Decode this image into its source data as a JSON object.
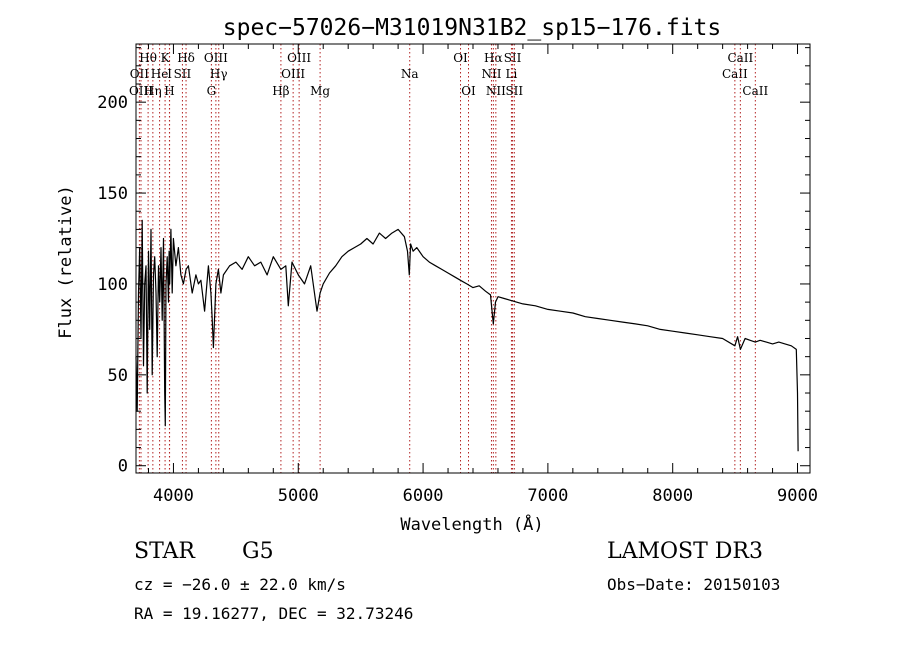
{
  "chart_data": {
    "type": "line",
    "title": "spec−57026−M31019N31B2_sp15−176.fits",
    "xlabel": "Wavelength (Å)",
    "ylabel": "Flux (relative)",
    "xlim": [
      3700,
      9100
    ],
    "ylim": [
      -4,
      232
    ],
    "xticks": [
      4000,
      5000,
      6000,
      7000,
      8000,
      9000
    ],
    "yticks": [
      0,
      50,
      100,
      150,
      200
    ],
    "minor_x_step": 200,
    "minor_y_step": 10,
    "series": [
      {
        "name": "spectrum",
        "color": "#000000",
        "x": [
          3700,
          3710,
          3720,
          3730,
          3740,
          3750,
          3760,
          3770,
          3780,
          3790,
          3800,
          3810,
          3820,
          3830,
          3840,
          3850,
          3860,
          3870,
          3880,
          3890,
          3900,
          3910,
          3920,
          3930,
          3935,
          3940,
          3950,
          3960,
          3965,
          3970,
          3980,
          3990,
          4000,
          4020,
          4040,
          4060,
          4080,
          4101,
          4120,
          4150,
          4180,
          4200,
          4220,
          4250,
          4280,
          4300,
          4310,
          4320,
          4340,
          4360,
          4380,
          4400,
          4450,
          4500,
          4550,
          4600,
          4650,
          4700,
          4750,
          4800,
          4861,
          4900,
          4920,
          4950,
          5000,
          5050,
          5100,
          5150,
          5175,
          5200,
          5250,
          5300,
          5350,
          5400,
          5450,
          5500,
          5550,
          5600,
          5650,
          5700,
          5750,
          5800,
          5850,
          5875,
          5890,
          5900,
          5920,
          5950,
          6000,
          6050,
          6100,
          6150,
          6200,
          6250,
          6300,
          6350,
          6400,
          6450,
          6500,
          6540,
          6563,
          6580,
          6600,
          6650,
          6700,
          6800,
          6900,
          7000,
          7100,
          7200,
          7300,
          7400,
          7500,
          7600,
          7700,
          7800,
          7900,
          8000,
          8100,
          8200,
          8300,
          8400,
          8498,
          8520,
          8542,
          8580,
          8620,
          8662,
          8700,
          8750,
          8800,
          8850,
          8900,
          8950,
          8990,
          9000,
          9005
        ],
        "y": [
          60,
          30,
          95,
          120,
          70,
          135,
          55,
          100,
          110,
          40,
          118,
          75,
          130,
          50,
          105,
          115,
          95,
          60,
          110,
          90,
          120,
          80,
          125,
          40,
          22,
          100,
          115,
          90,
          118,
          100,
          130,
          95,
          125,
          110,
          120,
          105,
          100,
          108,
          110,
          95,
          105,
          100,
          102,
          85,
          110,
          95,
          82,
          65,
          100,
          108,
          95,
          105,
          110,
          112,
          108,
          115,
          110,
          112,
          105,
          115,
          108,
          110,
          88,
          112,
          105,
          100,
          110,
          85,
          95,
          100,
          106,
          110,
          115,
          118,
          120,
          122,
          125,
          122,
          128,
          125,
          128,
          130,
          126,
          118,
          105,
          122,
          118,
          120,
          115,
          112,
          110,
          108,
          106,
          104,
          102,
          100,
          98,
          99,
          96,
          94,
          78,
          90,
          93,
          92,
          91,
          89,
          88,
          86,
          85,
          84,
          82,
          81,
          80,
          79,
          78,
          77,
          75,
          74,
          73,
          72,
          71,
          70,
          66,
          71,
          64,
          70,
          69,
          68,
          69,
          68,
          67,
          68,
          67,
          66,
          64,
          40,
          8
        ]
      }
    ],
    "line_markers": [
      {
        "name": "OII",
        "x": 3727,
        "row": 1
      },
      {
        "name": "OIII",
        "x": 3740,
        "row": 2
      },
      {
        "name": "Hθ",
        "x": 3797,
        "row": 0
      },
      {
        "name": "Hη",
        "x": 3835,
        "row": 2
      },
      {
        "name": "He",
        "x": 3889,
        "row": 1
      },
      {
        "name": "K",
        "x": 3933,
        "row": 0
      },
      {
        "name": "H",
        "x": 3968,
        "row": 2
      },
      {
        "name": "I",
        "x": 3969,
        "row": 1
      },
      {
        "name": "SII",
        "x": 4072,
        "row": 1
      },
      {
        "name": "Hδ",
        "x": 4101,
        "row": 0
      },
      {
        "name": "G",
        "x": 4304,
        "row": 2
      },
      {
        "name": "OIII",
        "x": 4340,
        "row": 0
      },
      {
        "name": "Hγ",
        "x": 4363,
        "row": 1
      },
      {
        "name": "Hβ",
        "x": 4861,
        "row": 2
      },
      {
        "name": "OIII",
        "x": 4959,
        "row": 1
      },
      {
        "name": "OIII",
        "x": 5007,
        "row": 0
      },
      {
        "name": "Mg",
        "x": 5175,
        "row": 2
      },
      {
        "name": "Na",
        "x": 5893,
        "row": 1
      },
      {
        "name": "OI",
        "x": 6300,
        "row": 0
      },
      {
        "name": "OI",
        "x": 6364,
        "row": 2
      },
      {
        "name": "NII",
        "x": 6548,
        "row": 1
      },
      {
        "name": "Hα",
        "x": 6563,
        "row": 0
      },
      {
        "name": "NII",
        "x": 6583,
        "row": 2
      },
      {
        "name": "Li",
        "x": 6708,
        "row": 1
      },
      {
        "name": "SII",
        "x": 6717,
        "row": 0
      },
      {
        "name": "SII",
        "x": 6731,
        "row": 2
      },
      {
        "name": "CaII",
        "x": 8498,
        "row": 1
      },
      {
        "name": "CaII",
        "x": 8542,
        "row": 0
      },
      {
        "name": "CaII",
        "x": 8662,
        "row": 2
      }
    ],
    "marker_color": "#b22222"
  },
  "info": {
    "classification": "STAR",
    "subclass": "G5",
    "redshift": "cz = −26.0 ± 22.0 km/s",
    "coords": "RA =  19.16277, DEC =  32.73246",
    "survey": "LAMOST DR3",
    "obs_date": "Obs−Date: 20150103"
  }
}
